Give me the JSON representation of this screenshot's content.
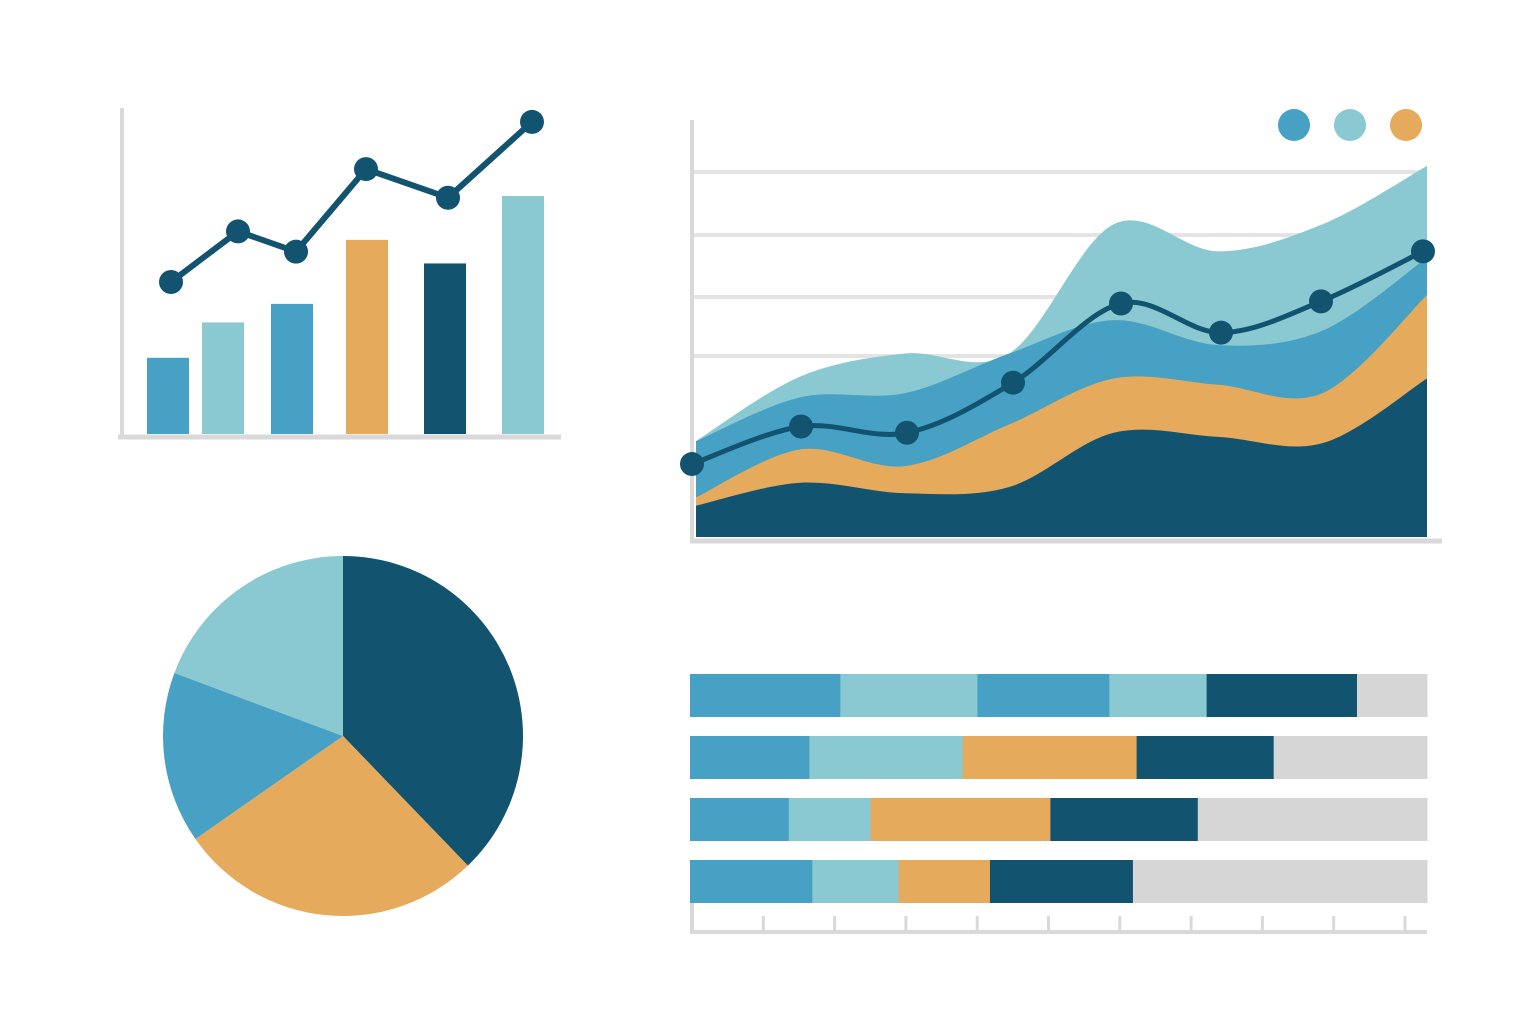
{
  "colors": {
    "dark": "#12536F",
    "mid": "#47A1C4",
    "light": "#8AC8D2",
    "orange": "#E6AA5C",
    "gray": "#D5D6D5",
    "axis": "#D9D9D9",
    "grid": "#E4E4E4"
  },
  "chart_data": [
    {
      "type": "bar",
      "categories": [
        "",
        "",
        "",
        "",
        "",
        ""
      ],
      "series": [
        {
          "role": "bars",
          "values": [
            4.7,
            6.8,
            7.9,
            11.7,
            10.3,
            14.3
          ]
        },
        {
          "role": "line",
          "values": [
            9.2,
            12.2,
            11.0,
            15.9,
            14.2,
            18.7
          ]
        }
      ],
      "bar_colors": [
        "mid",
        "light",
        "mid",
        "orange",
        "dark",
        "light"
      ],
      "ylim": [
        0,
        20
      ],
      "xlabel": "",
      "ylabel": "",
      "title": ""
    },
    {
      "type": "area",
      "x": [
        0,
        1,
        2,
        3,
        4,
        5,
        6,
        7
      ],
      "series": [
        {
          "color": "dark",
          "values": [
            1.5,
            2.6,
            2.1,
            2.4,
            5.0,
            4.8,
            4.5,
            7.6
          ]
        },
        {
          "color": "orange",
          "values": [
            1.9,
            4.2,
            3.4,
            5.4,
            7.6,
            7.3,
            6.9,
            11.6
          ]
        },
        {
          "color": "mid",
          "values": [
            4.6,
            6.7,
            6.9,
            8.8,
            10.4,
            9.2,
            9.9,
            13.4
          ]
        },
        {
          "color": "light",
          "values": [
            4.6,
            7.7,
            8.8,
            8.8,
            15.0,
            13.7,
            15.0,
            17.8
          ]
        }
      ],
      "line": {
        "color": "dark",
        "values": [
          3.5,
          5.3,
          5.0,
          7.4,
          11.2,
          9.8,
          11.3,
          13.7
        ]
      },
      "legend": {
        "position": "top-right",
        "colors": [
          "mid",
          "light",
          "orange"
        ]
      },
      "ylim": [
        0,
        20
      ],
      "grid": true,
      "xlabel": "",
      "ylabel": "",
      "title": ""
    },
    {
      "type": "pie",
      "slices": [
        {
          "color": "dark",
          "value": 37.8
        },
        {
          "color": "orange",
          "value": 27.5
        },
        {
          "color": "mid",
          "value": 15.4
        },
        {
          "color": "light",
          "value": 19.3
        }
      ],
      "title": ""
    },
    {
      "type": "bar",
      "orientation": "horizontal-stacked",
      "categories": [
        "",
        "",
        "",
        ""
      ],
      "series_colors": [
        "mid",
        "light",
        "third",
        "dark",
        "gray"
      ],
      "rows": [
        {
          "segments": [
            {
              "color": "mid",
              "value": 20.4
            },
            {
              "color": "light",
              "value": 18.6
            },
            {
              "color": "mid",
              "value": 17.9
            },
            {
              "color": "light",
              "value": 13.2
            },
            {
              "color": "dark",
              "value": 20.4
            },
            {
              "color": "gray",
              "value": 9.5
            }
          ]
        },
        {
          "segments": [
            {
              "color": "mid",
              "value": 16.2
            },
            {
              "color": "light",
              "value": 20.8
            },
            {
              "color": "orange",
              "value": 23.6
            },
            {
              "color": "dark",
              "value": 18.6
            },
            {
              "color": "gray",
              "value": 20.8
            }
          ]
        },
        {
          "segments": [
            {
              "color": "mid",
              "value": 13.4
            },
            {
              "color": "light",
              "value": 11.1
            },
            {
              "color": "orange",
              "value": 24.4
            },
            {
              "color": "dark",
              "value": 20.0
            },
            {
              "color": "gray",
              "value": 31.1
            }
          ]
        },
        {
          "segments": [
            {
              "color": "mid",
              "value": 16.6
            },
            {
              "color": "light",
              "value": 11.7
            },
            {
              "color": "orange",
              "value": 12.4
            },
            {
              "color": "dark",
              "value": 19.4
            },
            {
              "color": "gray",
              "value": 39.9
            }
          ]
        }
      ],
      "xlim": [
        0,
        100
      ],
      "xticks": 10,
      "title": ""
    }
  ]
}
